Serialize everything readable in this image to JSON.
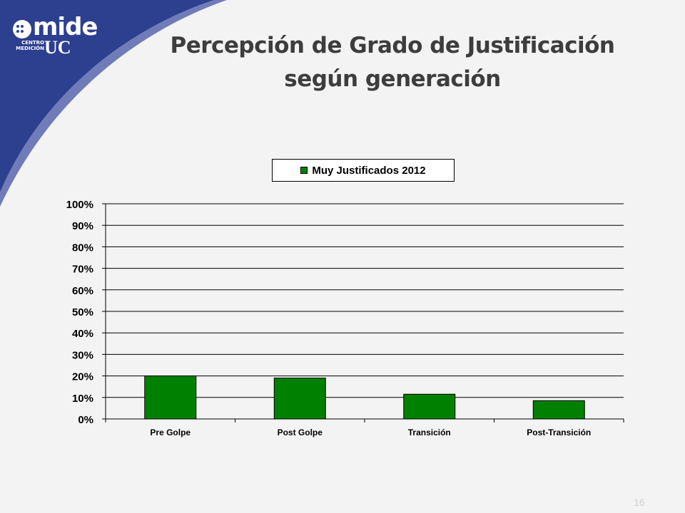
{
  "slide": {
    "title_line1": "Percepción de Grado de Justificación",
    "title_line2": "según generación",
    "page_number": "16"
  },
  "logo": {
    "mide": "mide",
    "uc": "UC",
    "centro": "CENTRO",
    "medicion": "MEDICIÓN"
  },
  "colors": {
    "background": "#f3f3f3",
    "accent_blue": "#2d3f8f",
    "bar": "#008000",
    "title": "#3d3d3d"
  },
  "chart_data": {
    "type": "bar",
    "title": "",
    "categories": [
      "Pre Golpe",
      "Post Golpe",
      "Transición",
      "Post-Transición"
    ],
    "series": [
      {
        "name": "Muy Justificados 2012",
        "values": [
          20,
          19,
          11.5,
          8.5
        ]
      }
    ],
    "xlabel": "",
    "ylabel": "",
    "ylim": [
      0,
      100
    ],
    "y_ticks": [
      "0%",
      "10%",
      "20%",
      "30%",
      "40%",
      "50%",
      "60%",
      "70%",
      "80%",
      "90%",
      "100%"
    ],
    "grid": true,
    "legend_position": "top-center"
  }
}
